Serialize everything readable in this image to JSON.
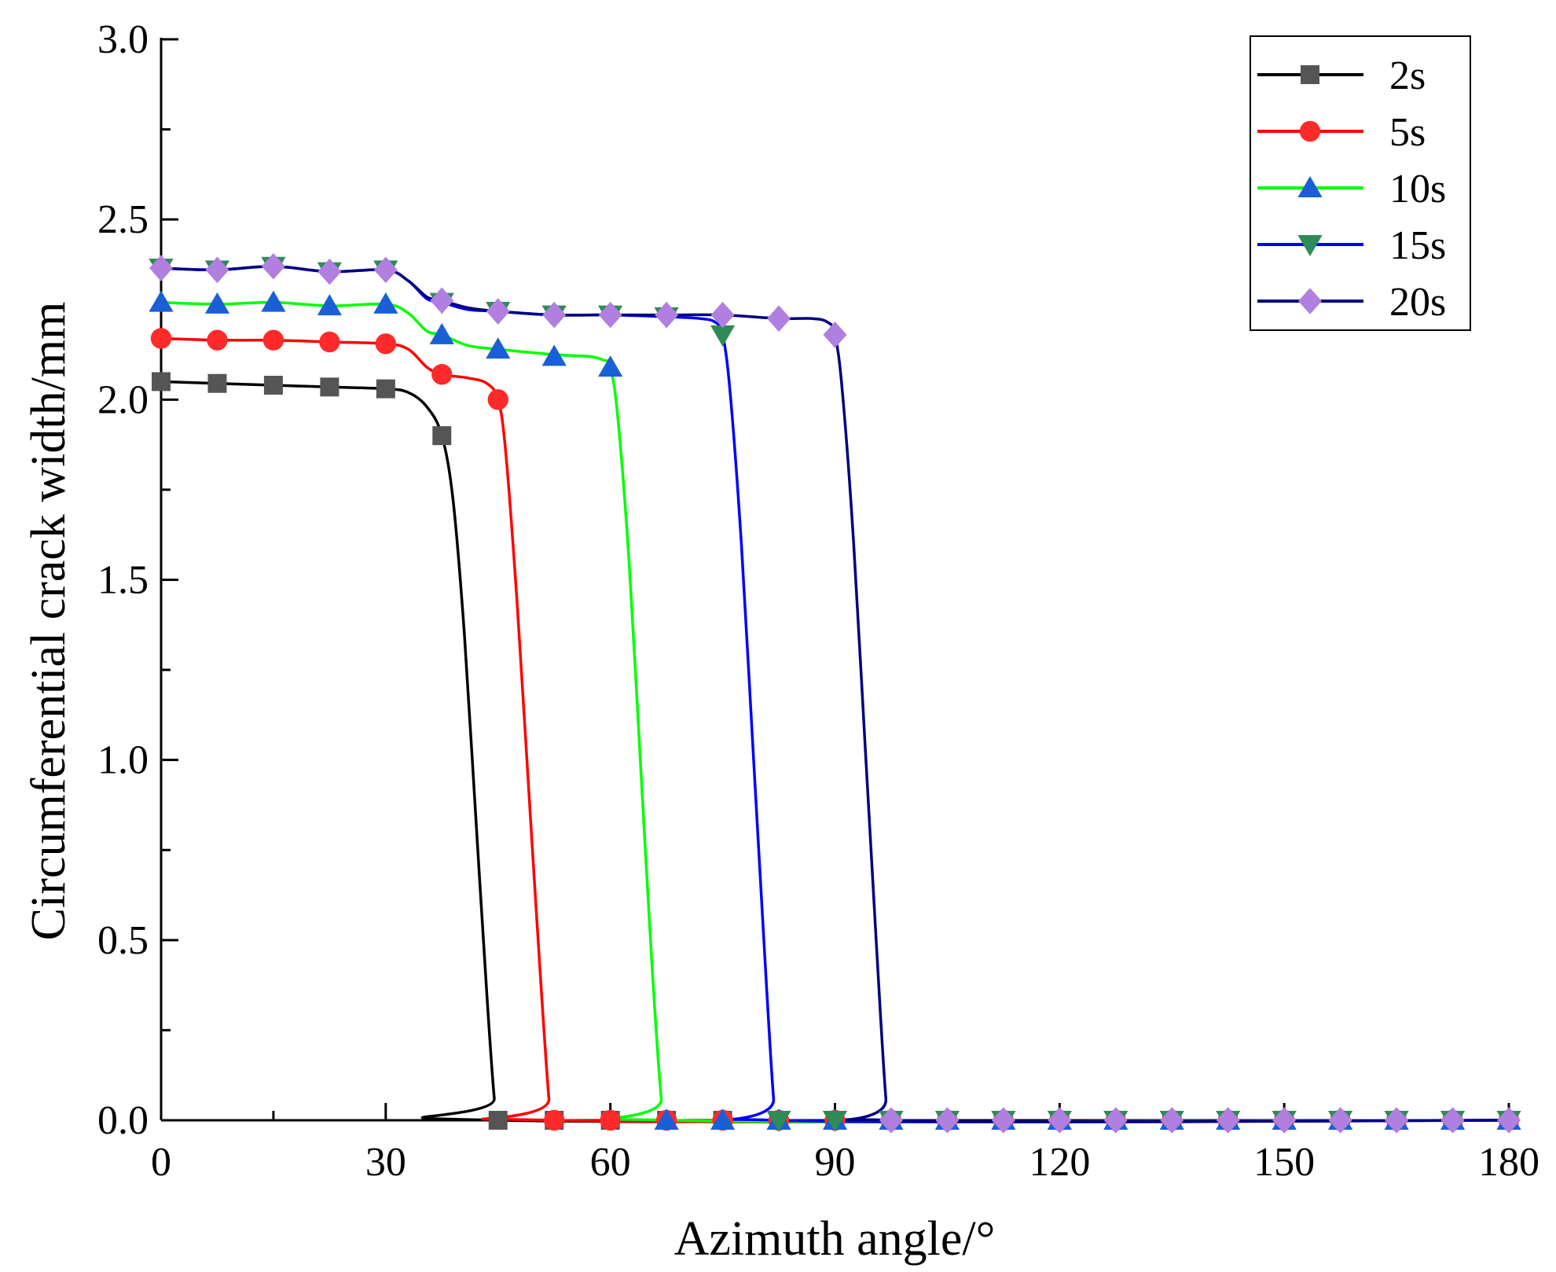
{
  "chart_data": {
    "type": "line",
    "title": "",
    "xlabel": "Azimuth angle/°",
    "ylabel": "Circumferential crack width/mm",
    "xlim": [
      0,
      180
    ],
    "ylim": [
      0,
      3.0
    ],
    "x_ticks": [
      0,
      30,
      60,
      90,
      120,
      150,
      180
    ],
    "x_tick_labels": [
      "0",
      "30",
      "60",
      "90",
      "120",
      "150",
      "180"
    ],
    "y_ticks": [
      0,
      0.5,
      1.0,
      1.5,
      2.0,
      2.5,
      3.0
    ],
    "y_tick_labels": [
      "0.0",
      "0.5",
      "1.0",
      "1.5",
      "2.0",
      "2.5",
      "3.0"
    ],
    "grid": false,
    "legend_position": "top-right",
    "series": [
      {
        "name": "2s",
        "color": "#000000",
        "marker_color": "#555555",
        "marker": "square",
        "markers": [
          [
            0,
            2.05
          ],
          [
            7.5,
            2.045
          ],
          [
            15,
            2.04
          ],
          [
            22.5,
            2.035
          ],
          [
            30,
            2.03
          ],
          [
            37.5,
            1.9
          ],
          [
            45,
            0
          ],
          [
            52.5,
            0
          ],
          [
            60,
            0
          ],
          [
            67.5,
            0
          ],
          [
            75,
            0
          ],
          [
            82.5,
            0
          ],
          [
            90,
            0
          ],
          [
            97.5,
            0
          ],
          [
            105,
            0
          ],
          [
            112.5,
            0
          ],
          [
            120,
            0
          ],
          [
            127.5,
            0
          ],
          [
            135,
            0
          ],
          [
            142.5,
            0
          ],
          [
            150,
            0
          ],
          [
            157.5,
            0
          ],
          [
            165,
            0
          ],
          [
            172.5,
            0
          ],
          [
            180,
            0
          ]
        ],
        "curve": [
          [
            0,
            2.05
          ],
          [
            7.5,
            2.045
          ],
          [
            15,
            2.04
          ],
          [
            22.5,
            2.035
          ],
          [
            30,
            2.03
          ],
          [
            33,
            2.02
          ],
          [
            35.5,
            1.98
          ],
          [
            37.5,
            1.9
          ],
          [
            39,
            1.72
          ],
          [
            40.5,
            1.35
          ],
          [
            42,
            0.85
          ],
          [
            43.5,
            0.35
          ],
          [
            44.5,
            0.06
          ],
          [
            45,
            0
          ],
          [
            180,
            0
          ]
        ]
      },
      {
        "name": "5s",
        "color": "#ff0000",
        "marker_color": "#ff2a2a",
        "marker": "circle",
        "markers": [
          [
            0,
            2.17
          ],
          [
            7.5,
            2.165
          ],
          [
            15,
            2.165
          ],
          [
            22.5,
            2.16
          ],
          [
            30,
            2.155
          ],
          [
            37.5,
            2.07
          ],
          [
            45,
            2.0
          ],
          [
            52.5,
            0
          ],
          [
            60,
            0
          ],
          [
            67.5,
            0
          ],
          [
            75,
            0
          ],
          [
            82.5,
            0
          ],
          [
            90,
            0
          ],
          [
            97.5,
            0
          ],
          [
            105,
            0
          ],
          [
            112.5,
            0
          ],
          [
            120,
            0
          ],
          [
            127.5,
            0
          ],
          [
            135,
            0
          ],
          [
            142.5,
            0
          ],
          [
            150,
            0
          ],
          [
            157.5,
            0
          ],
          [
            165,
            0
          ],
          [
            172.5,
            0
          ],
          [
            180,
            0
          ]
        ],
        "curve": [
          [
            0,
            2.17
          ],
          [
            7.5,
            2.165
          ],
          [
            15,
            2.165
          ],
          [
            22.5,
            2.16
          ],
          [
            30,
            2.155
          ],
          [
            33,
            2.14
          ],
          [
            35.5,
            2.09
          ],
          [
            37.5,
            2.07
          ],
          [
            41,
            2.06
          ],
          [
            43.5,
            2.045
          ],
          [
            45,
            2.0
          ],
          [
            46,
            1.86
          ],
          [
            47.5,
            1.45
          ],
          [
            49,
            0.95
          ],
          [
            50.5,
            0.45
          ],
          [
            51.8,
            0.06
          ],
          [
            52.5,
            0
          ],
          [
            180,
            0
          ]
        ]
      },
      {
        "name": "10s",
        "color": "#00ff00",
        "marker_color": "#1a5fd6",
        "marker": "triangle-up",
        "markers": [
          [
            0,
            2.27
          ],
          [
            7.5,
            2.265
          ],
          [
            15,
            2.27
          ],
          [
            22.5,
            2.26
          ],
          [
            30,
            2.265
          ],
          [
            37.5,
            2.18
          ],
          [
            45,
            2.14
          ],
          [
            52.5,
            2.12
          ],
          [
            60,
            2.09
          ],
          [
            67.5,
            0
          ],
          [
            75,
            0
          ],
          [
            82.5,
            0
          ],
          [
            90,
            0
          ],
          [
            97.5,
            0
          ],
          [
            105,
            0
          ],
          [
            112.5,
            0
          ],
          [
            120,
            0
          ],
          [
            127.5,
            0
          ],
          [
            135,
            0
          ],
          [
            142.5,
            0
          ],
          [
            150,
            0
          ],
          [
            157.5,
            0
          ],
          [
            165,
            0
          ],
          [
            172.5,
            0
          ],
          [
            180,
            0
          ]
        ],
        "curve": [
          [
            0,
            2.27
          ],
          [
            7.5,
            2.265
          ],
          [
            15,
            2.27
          ],
          [
            22.5,
            2.26
          ],
          [
            30,
            2.265
          ],
          [
            33,
            2.24
          ],
          [
            35.5,
            2.19
          ],
          [
            37.5,
            2.18
          ],
          [
            41,
            2.15
          ],
          [
            45,
            2.14
          ],
          [
            52.5,
            2.125
          ],
          [
            57,
            2.12
          ],
          [
            59,
            2.11
          ],
          [
            60,
            2.09
          ],
          [
            61,
            1.95
          ],
          [
            62.5,
            1.55
          ],
          [
            64,
            1.0
          ],
          [
            65.5,
            0.45
          ],
          [
            66.8,
            0.06
          ],
          [
            67.5,
            0
          ],
          [
            180,
            0
          ]
        ]
      },
      {
        "name": "15s",
        "color": "#0000ff",
        "marker_color": "#2e8b57",
        "marker": "triangle-down",
        "markers": [
          [
            0,
            2.365
          ],
          [
            7.5,
            2.36
          ],
          [
            15,
            2.37
          ],
          [
            22.5,
            2.355
          ],
          [
            30,
            2.36
          ],
          [
            37.5,
            2.27
          ],
          [
            45,
            2.245
          ],
          [
            52.5,
            2.235
          ],
          [
            60,
            2.235
          ],
          [
            67.5,
            2.23
          ],
          [
            75,
            2.18
          ],
          [
            82.5,
            0
          ],
          [
            90,
            0
          ],
          [
            97.5,
            0
          ],
          [
            105,
            0
          ],
          [
            112.5,
            0
          ],
          [
            120,
            0
          ],
          [
            127.5,
            0
          ],
          [
            135,
            0
          ],
          [
            142.5,
            0
          ],
          [
            150,
            0
          ],
          [
            157.5,
            0
          ],
          [
            165,
            0
          ],
          [
            172.5,
            0
          ],
          [
            180,
            0
          ]
        ],
        "curve": [
          [
            0,
            2.365
          ],
          [
            7.5,
            2.36
          ],
          [
            15,
            2.37
          ],
          [
            22.5,
            2.355
          ],
          [
            30,
            2.36
          ],
          [
            33,
            2.33
          ],
          [
            35.5,
            2.28
          ],
          [
            37.5,
            2.27
          ],
          [
            41,
            2.25
          ],
          [
            45,
            2.245
          ],
          [
            52.5,
            2.235
          ],
          [
            60,
            2.235
          ],
          [
            67.5,
            2.23
          ],
          [
            72,
            2.225
          ],
          [
            74,
            2.215
          ],
          [
            75,
            2.18
          ],
          [
            76,
            2.02
          ],
          [
            77.5,
            1.6
          ],
          [
            79,
            1.05
          ],
          [
            80.5,
            0.5
          ],
          [
            81.8,
            0.06
          ],
          [
            82.5,
            0
          ],
          [
            180,
            0
          ]
        ]
      },
      {
        "name": "20s",
        "color": "#000080",
        "marker_color": "#b07fe0",
        "marker": "diamond",
        "markers": [
          [
            0,
            2.365
          ],
          [
            7.5,
            2.36
          ],
          [
            15,
            2.37
          ],
          [
            22.5,
            2.355
          ],
          [
            30,
            2.36
          ],
          [
            37.5,
            2.275
          ],
          [
            45,
            2.245
          ],
          [
            52.5,
            2.235
          ],
          [
            60,
            2.235
          ],
          [
            67.5,
            2.235
          ],
          [
            75,
            2.235
          ],
          [
            82.5,
            2.225
          ],
          [
            90,
            2.18
          ],
          [
            97.5,
            0
          ],
          [
            105,
            0
          ],
          [
            112.5,
            0
          ],
          [
            120,
            0
          ],
          [
            127.5,
            0
          ],
          [
            135,
            0
          ],
          [
            142.5,
            0
          ],
          [
            150,
            0
          ],
          [
            157.5,
            0
          ],
          [
            165,
            0
          ],
          [
            172.5,
            0
          ],
          [
            180,
            0
          ]
        ],
        "curve": [
          [
            0,
            2.365
          ],
          [
            7.5,
            2.36
          ],
          [
            15,
            2.37
          ],
          [
            22.5,
            2.355
          ],
          [
            30,
            2.36
          ],
          [
            33,
            2.33
          ],
          [
            35.5,
            2.285
          ],
          [
            37.5,
            2.275
          ],
          [
            41,
            2.255
          ],
          [
            45,
            2.245
          ],
          [
            52.5,
            2.235
          ],
          [
            60,
            2.235
          ],
          [
            67.5,
            2.235
          ],
          [
            75,
            2.235
          ],
          [
            82.5,
            2.225
          ],
          [
            87,
            2.225
          ],
          [
            89,
            2.215
          ],
          [
            90,
            2.18
          ],
          [
            91,
            2.02
          ],
          [
            92.5,
            1.6
          ],
          [
            94,
            1.05
          ],
          [
            95.5,
            0.5
          ],
          [
            96.8,
            0.06
          ],
          [
            97.5,
            0
          ],
          [
            180,
            0
          ]
        ]
      }
    ]
  }
}
